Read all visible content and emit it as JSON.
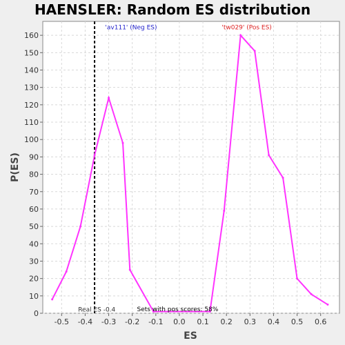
{
  "chart_data": {
    "type": "line",
    "title": "HAENSLER: Random ES distribution",
    "xlabel": "ES",
    "ylabel": "P(ES)",
    "xlim": [
      -0.58,
      0.68
    ],
    "ylim": [
      0,
      168
    ],
    "xticks": [
      -0.5,
      -0.4,
      -0.3,
      -0.2,
      -0.1,
      0.0,
      0.1,
      0.2,
      0.3,
      0.4,
      0.5,
      0.6
    ],
    "xtick_labels": [
      "-0.5",
      "-0.4",
      "-0.3",
      "-0.2",
      "-0.1",
      "0.0",
      "0.1",
      "0.2",
      "0.3",
      "0.4",
      "0.5",
      "0.6"
    ],
    "yticks": [
      0,
      10,
      20,
      30,
      40,
      50,
      60,
      70,
      80,
      90,
      100,
      110,
      120,
      130,
      140,
      150,
      160
    ],
    "ytick_labels": [
      "0",
      "10",
      "20",
      "30",
      "40",
      "50",
      "60",
      "70",
      "80",
      "90",
      "100",
      "110",
      "120",
      "130",
      "140",
      "150",
      "160"
    ],
    "grid": true,
    "series": [
      {
        "color": "#ff33ff",
        "x": [
          -0.54,
          -0.48,
          -0.42,
          -0.36,
          -0.3,
          -0.24,
          -0.21,
          -0.11,
          0.13,
          0.19,
          0.26,
          0.32,
          0.38,
          0.44,
          0.5,
          0.56,
          0.63
        ],
        "y": [
          8,
          24,
          50,
          91,
          124,
          98,
          25,
          1,
          1,
          59,
          160,
          151,
          91,
          78,
          20,
          11,
          5
        ]
      }
    ],
    "reference_line": {
      "x": -0.36,
      "style": "dashed",
      "color": "#000000"
    },
    "annotations": [
      {
        "text": "'av111' (Neg ES)",
        "x": -0.315,
        "y": 163,
        "color": "#2222cc"
      },
      {
        "text": "'tw029' (Pos ES)",
        "x": 0.18,
        "y": 163,
        "color": "#dd2222"
      },
      {
        "text": "Real ES -0.4",
        "x": -0.43,
        "y": 0.5,
        "color": "#333333"
      },
      {
        "text": "Sets with pos scores: 58%",
        "x": -0.18,
        "y": 0.8,
        "color": "#000000"
      }
    ]
  }
}
